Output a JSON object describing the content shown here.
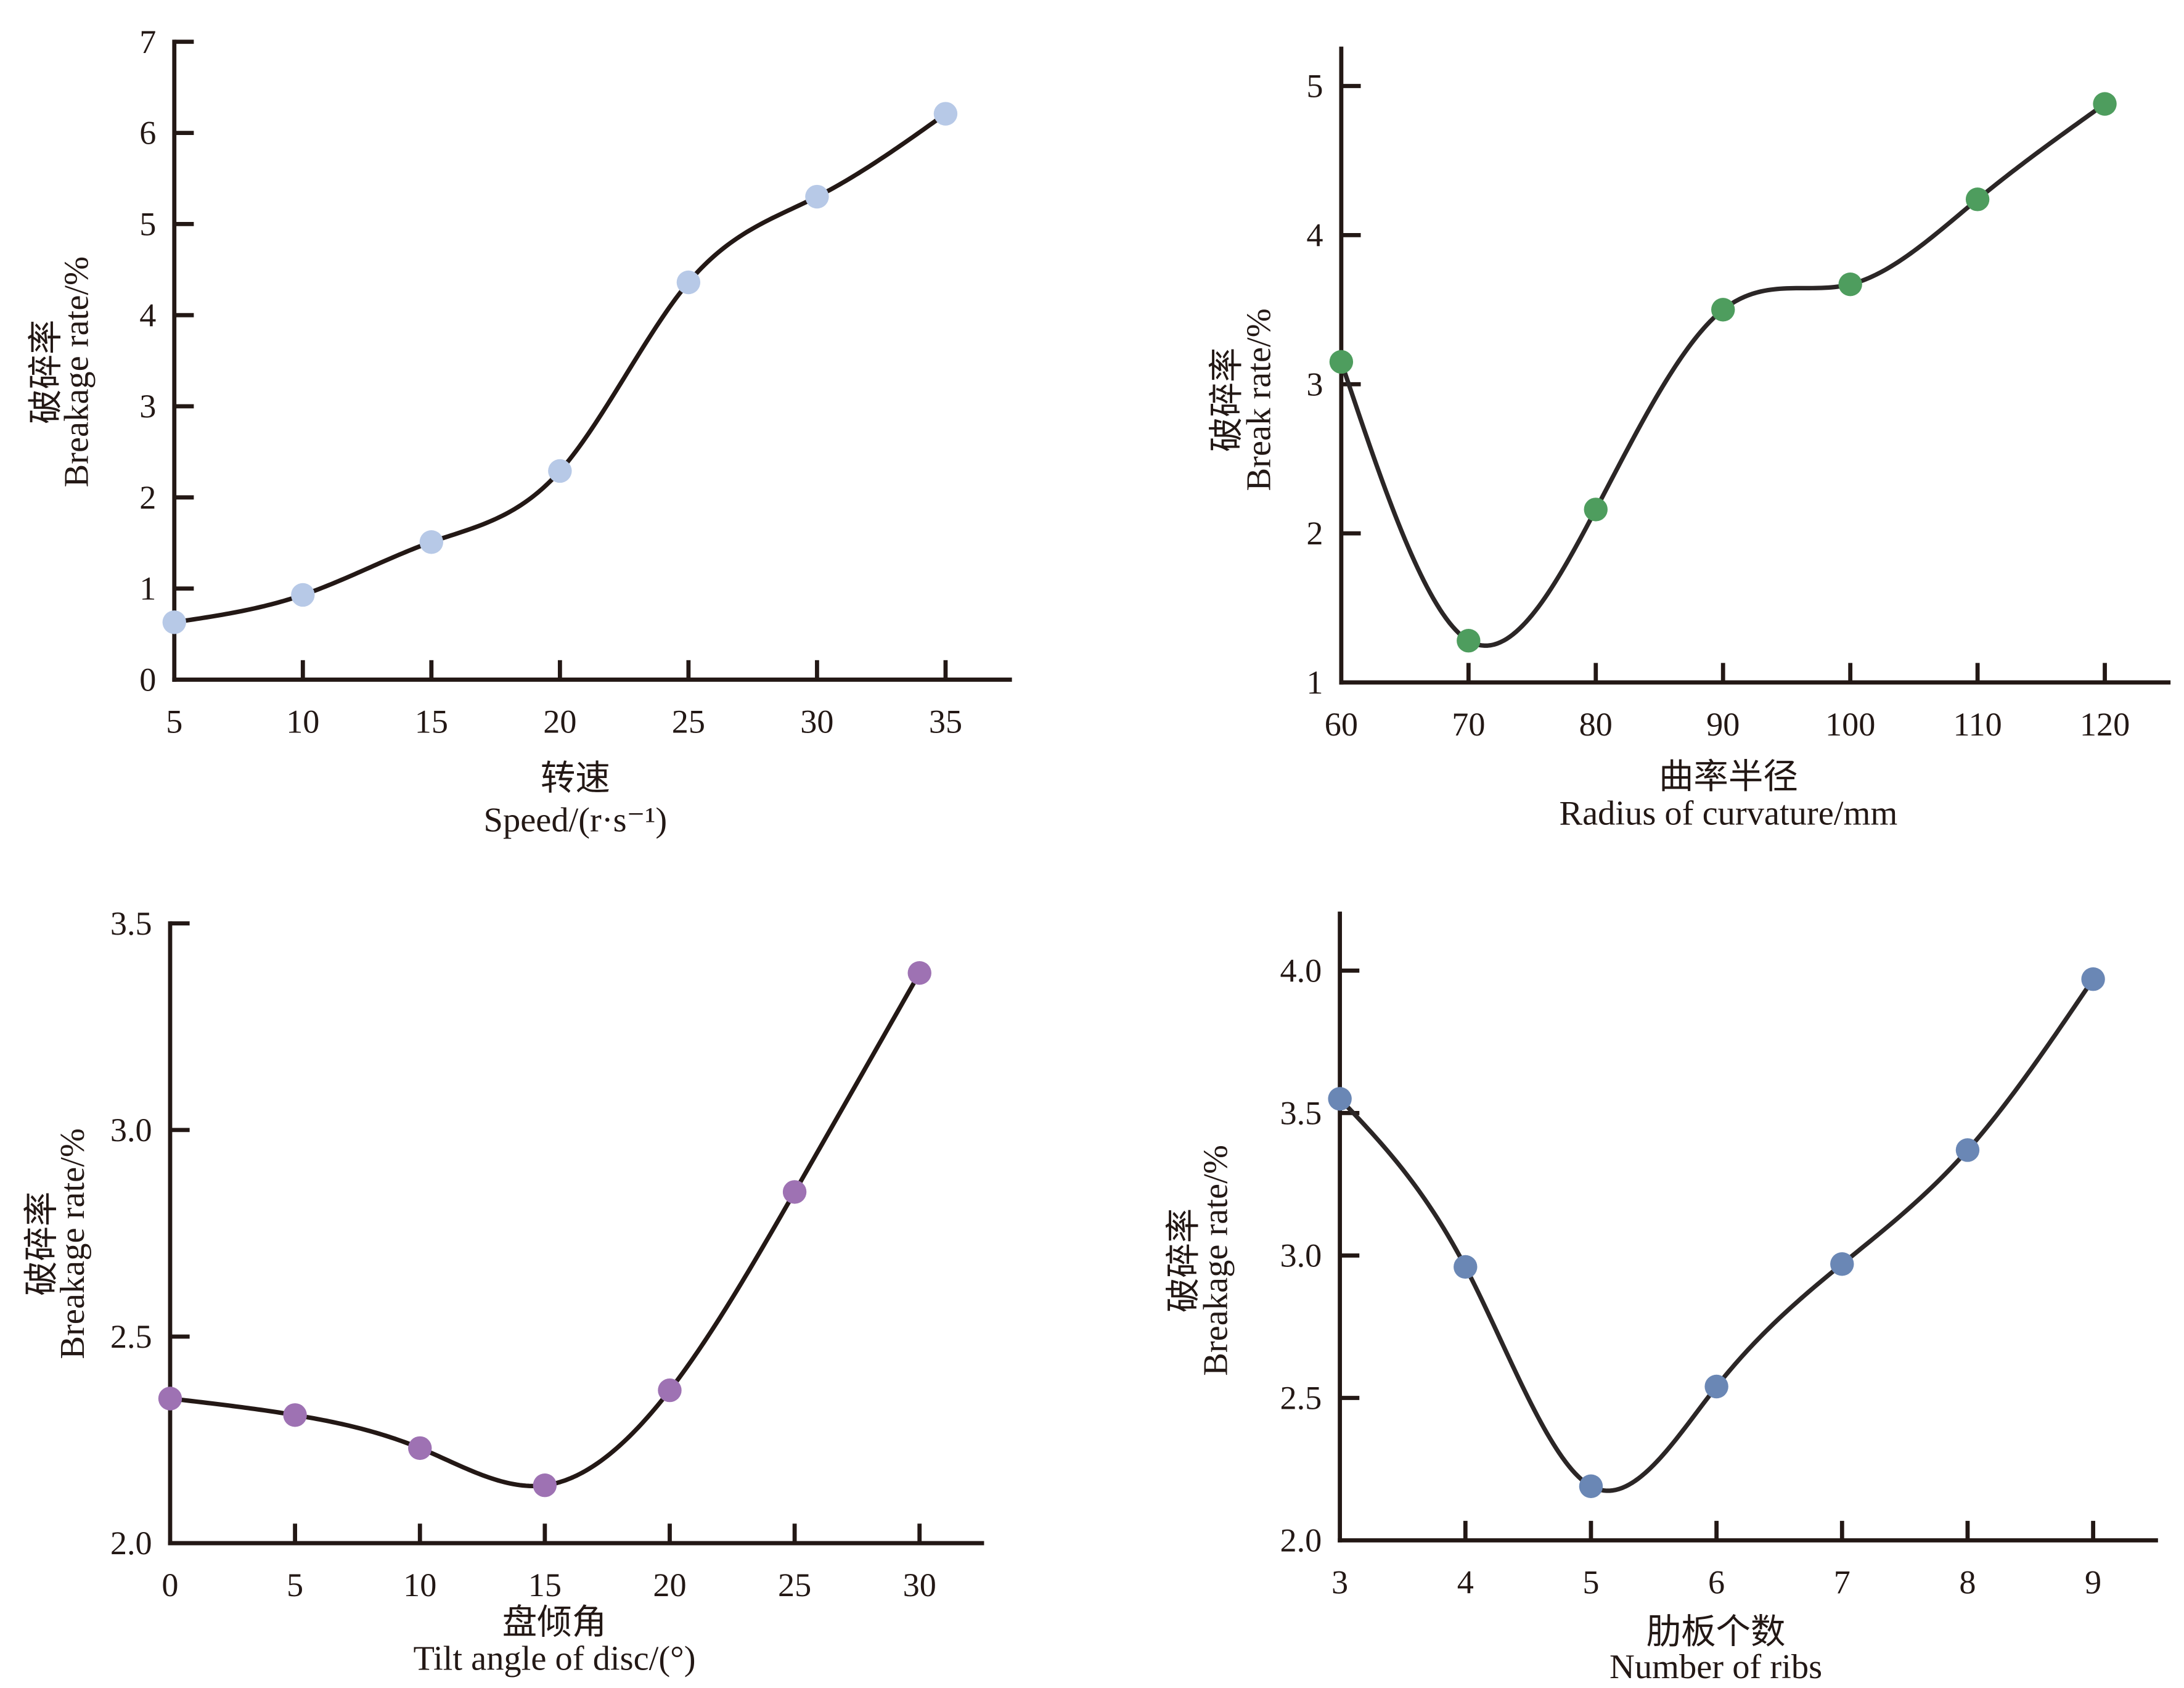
{
  "chart_data": [
    {
      "type": "line",
      "xlabel_cn": "转速",
      "xlabel": "Speed/(r·s⁻¹)",
      "ylabel_cn": "破碎率",
      "ylabel": "Breakage rate/%",
      "x": [
        5,
        10,
        15,
        20,
        25,
        30,
        35
      ],
      "series": [
        {
          "values": [
            0.63,
            0.93,
            1.51,
            2.29,
            4.36,
            5.3,
            6.21
          ],
          "marker_color": "#b7c9e7",
          "line_color": "#231815"
        }
      ],
      "xlim": [
        5,
        37.5
      ],
      "ylim": [
        0,
        7
      ],
      "xticks": [
        "5",
        "10",
        "15",
        "20",
        "25",
        "30",
        "35"
      ],
      "yticks": [
        "0",
        "1",
        "2",
        "3",
        "4",
        "5",
        "6",
        "7"
      ],
      "smooth": true,
      "grid": false
    },
    {
      "type": "line",
      "xlabel_cn": "曲率半径",
      "xlabel": "Radius of curvature/mm",
      "ylabel_cn": "破碎率",
      "ylabel": "Break rate/%",
      "x": [
        60,
        70,
        80,
        90,
        100,
        110,
        120
      ],
      "series": [
        {
          "values": [
            3.15,
            1.28,
            2.16,
            3.5,
            3.67,
            4.24,
            4.88
          ],
          "marker_color": "#4e9d5e",
          "line_color": "#2b2626"
        }
      ],
      "xlim": [
        60,
        125
      ],
      "ylim": [
        1,
        5.25
      ],
      "xticks": [
        "60",
        "70",
        "80",
        "90",
        "100",
        "110",
        "120"
      ],
      "yticks": [
        "1",
        "2",
        "3",
        "4",
        "5"
      ],
      "smooth": true,
      "grid": false
    },
    {
      "type": "line",
      "xlabel_cn": "盘倾角",
      "xlabel": "Tilt angle of disc/(°)",
      "ylabel_cn": "破碎率",
      "ylabel": "Breakage rate/%",
      "x": [
        0,
        5,
        10,
        15,
        20,
        25,
        30
      ],
      "series": [
        {
          "values": [
            2.35,
            2.31,
            2.23,
            2.14,
            2.37,
            2.85,
            3.38
          ],
          "marker_color": "#9e72b3",
          "line_color": "#231815"
        }
      ],
      "xlim": [
        0,
        32.5
      ],
      "ylim": [
        2.0,
        3.5
      ],
      "xticks": [
        "0",
        "5",
        "10",
        "15",
        "20",
        "25",
        "30"
      ],
      "yticks": [
        "2.0",
        "2.5",
        "3.0",
        "3.5"
      ],
      "smooth": true,
      "grid": false
    },
    {
      "type": "line",
      "xlabel_cn": "肋板个数",
      "xlabel": "Number of ribs",
      "ylabel_cn": "破碎率",
      "ylabel": "Breakage rate/%",
      "x": [
        3,
        4,
        5,
        6,
        7,
        8,
        9
      ],
      "series": [
        {
          "values": [
            3.55,
            2.96,
            2.19,
            2.54,
            2.97,
            3.37,
            3.97
          ],
          "marker_color": "#6a87b5",
          "line_color": "#2b2626"
        }
      ],
      "xlim": [
        3,
        9.5
      ],
      "ylim": [
        2.0,
        4.2
      ],
      "xticks": [
        "3",
        "4",
        "5",
        "6",
        "7",
        "8",
        "9"
      ],
      "yticks": [
        "2.0",
        "2.5",
        "3.0",
        "3.5",
        "4.0"
      ],
      "smooth": true,
      "grid": false
    }
  ]
}
